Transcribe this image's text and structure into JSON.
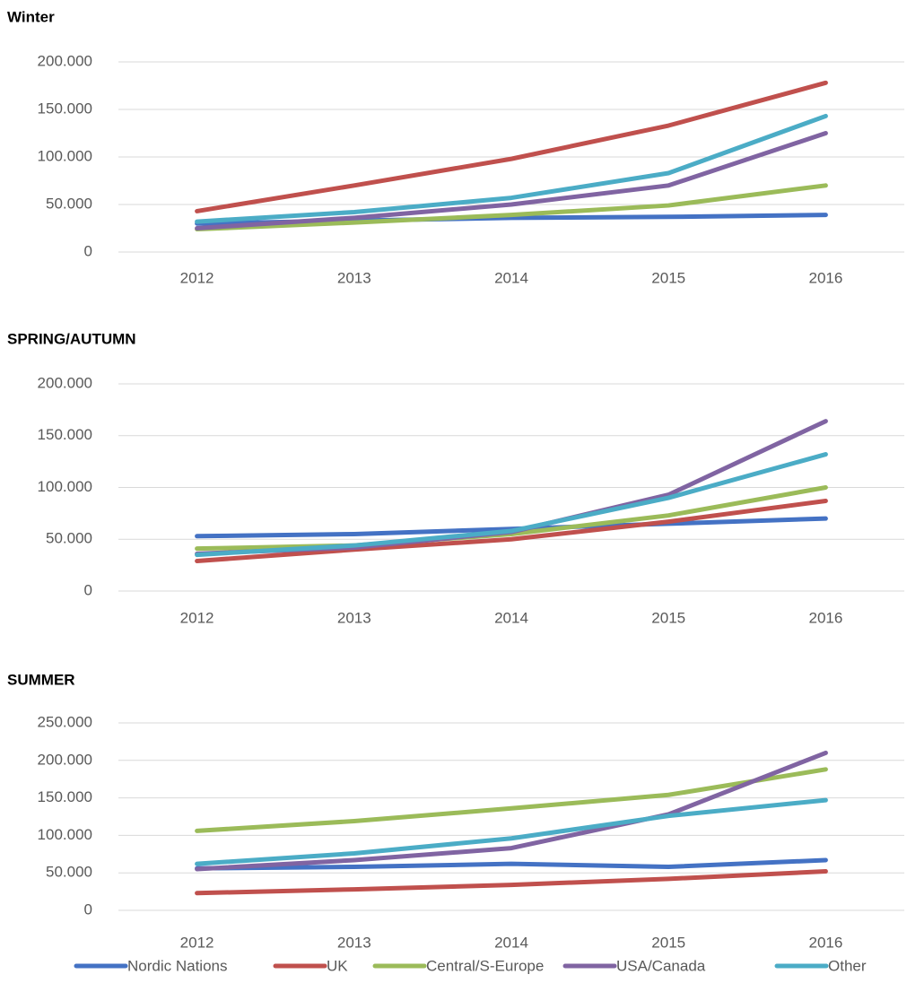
{
  "chart_data": [
    {
      "type": "line",
      "title": "Winter",
      "categories": [
        "2012",
        "2013",
        "2014",
        "2015",
        "2016"
      ],
      "ylim": [
        0,
        200000
      ],
      "yticks": [
        0,
        {
          "value": 50000,
          "label": "50.000"
        },
        {
          "value": 100000,
          "label": "100.000"
        },
        {
          "value": 150000,
          "label": "150.000"
        },
        {
          "value": 200000,
          "label": "200.000"
        }
      ],
      "grid": true,
      "series": [
        {
          "name": "Nordic Nations",
          "color": "#4472c4",
          "values": [
            30000,
            33000,
            36000,
            37000,
            39000
          ]
        },
        {
          "name": "UK",
          "color": "#c0504d",
          "values": [
            43000,
            70000,
            98000,
            133000,
            178000
          ]
        },
        {
          "name": "Central/S-Europe",
          "color": "#9bbb59",
          "values": [
            24000,
            31000,
            39000,
            49000,
            70000
          ]
        },
        {
          "name": "USA/Canada",
          "color": "#8064a2",
          "values": [
            25000,
            36000,
            50000,
            70000,
            125000
          ]
        },
        {
          "name": "Other",
          "color": "#4bacc6",
          "values": [
            32000,
            42000,
            57000,
            83000,
            143000
          ]
        }
      ]
    },
    {
      "type": "line",
      "title": "SPRING/AUTUMN",
      "categories": [
        "2012",
        "2013",
        "2014",
        "2015",
        "2016"
      ],
      "ylim": [
        0,
        200000
      ],
      "yticks": [
        0,
        {
          "value": 50000,
          "label": "50.000"
        },
        {
          "value": 100000,
          "label": "100.000"
        },
        {
          "value": 150000,
          "label": "150.000"
        },
        {
          "value": 200000,
          "label": "200.000"
        }
      ],
      "grid": true,
      "series": [
        {
          "name": "Nordic Nations",
          "color": "#4472c4",
          "values": [
            53000,
            55000,
            60000,
            65000,
            70000
          ]
        },
        {
          "name": "UK",
          "color": "#c0504d",
          "values": [
            29000,
            40000,
            50000,
            67000,
            87000
          ]
        },
        {
          "name": "Central/S-Europe",
          "color": "#9bbb59",
          "values": [
            41000,
            44000,
            55000,
            73000,
            100000
          ]
        },
        {
          "name": "USA/Canada",
          "color": "#8064a2",
          "values": [
            36000,
            42000,
            57000,
            93000,
            164000
          ]
        },
        {
          "name": "Other",
          "color": "#4bacc6",
          "values": [
            35000,
            44000,
            58000,
            90000,
            132000
          ]
        }
      ]
    },
    {
      "type": "line",
      "title": "SUMMER",
      "categories": [
        "2012",
        "2013",
        "2014",
        "2015",
        "2016"
      ],
      "ylim": [
        0,
        250000
      ],
      "yticks": [
        0,
        {
          "value": 50000,
          "label": "50.000"
        },
        {
          "value": 100000,
          "label": "100.000"
        },
        {
          "value": 150000,
          "label": "150.000"
        },
        {
          "value": 200000,
          "label": "200.000"
        },
        {
          "value": 250000,
          "label": "250.000"
        }
      ],
      "grid": true,
      "series": [
        {
          "name": "Nordic Nations",
          "color": "#4472c4",
          "values": [
            56000,
            58000,
            62000,
            58000,
            67000
          ]
        },
        {
          "name": "UK",
          "color": "#c0504d",
          "values": [
            23000,
            28000,
            34000,
            42000,
            52000
          ]
        },
        {
          "name": "Central/S-Europe",
          "color": "#9bbb59",
          "values": [
            106000,
            119000,
            136000,
            154000,
            188000
          ]
        },
        {
          "name": "USA/Canada",
          "color": "#8064a2",
          "values": [
            55000,
            67000,
            83000,
            128000,
            210000
          ]
        },
        {
          "name": "Other",
          "color": "#4bacc6",
          "values": [
            62000,
            76000,
            96000,
            126000,
            147000
          ]
        }
      ]
    }
  ]
}
